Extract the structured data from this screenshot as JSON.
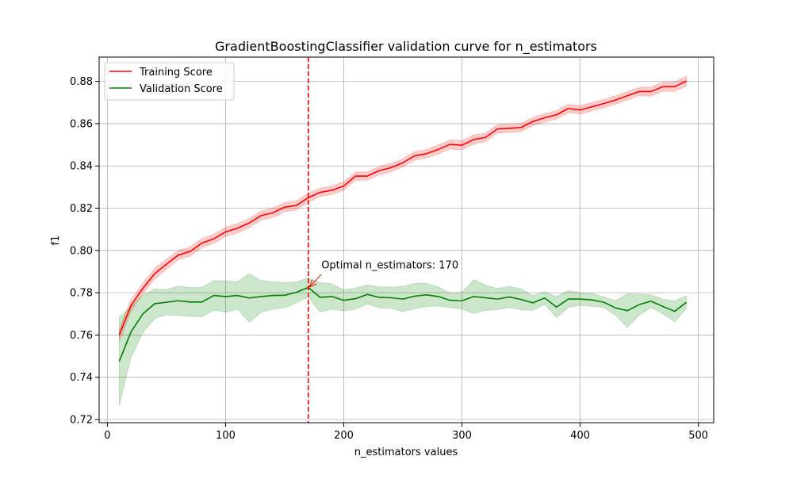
{
  "chart_data": {
    "type": "line",
    "title": "GradientBoostingClassifier validation curve for n_estimators",
    "xlabel": "n_estimators values",
    "ylabel": "f1",
    "xlim": [
      -7,
      513
    ],
    "ylim": [
      0.7185,
      0.8915
    ],
    "xticks": [
      0,
      100,
      200,
      300,
      400,
      500
    ],
    "yticks": [
      0.72,
      0.74,
      0.76,
      0.78,
      0.8,
      0.82,
      0.84,
      0.86,
      0.88
    ],
    "xtick_labels": [
      "0",
      "100",
      "200",
      "300",
      "400",
      "500"
    ],
    "ytick_labels": [
      "0.72",
      "0.74",
      "0.76",
      "0.78",
      "0.80",
      "0.82",
      "0.84",
      "0.86",
      "0.88"
    ],
    "grid": true,
    "legend_position": "top-left",
    "x": [
      10,
      20,
      30,
      40,
      50,
      60,
      70,
      80,
      90,
      100,
      110,
      120,
      130,
      140,
      150,
      160,
      170,
      180,
      190,
      200,
      210,
      220,
      230,
      240,
      250,
      260,
      270,
      280,
      290,
      300,
      310,
      320,
      330,
      340,
      350,
      360,
      370,
      380,
      390,
      400,
      410,
      420,
      430,
      440,
      450,
      460,
      470,
      480,
      490
    ],
    "series": [
      {
        "name": "Training Score",
        "color": "#ff0000",
        "band_color": "#ff0000",
        "band_opacity": 0.2,
        "values": [
          0.76,
          0.774,
          0.782,
          0.789,
          0.7935,
          0.7978,
          0.7995,
          0.8035,
          0.8055,
          0.8088,
          0.8105,
          0.813,
          0.8165,
          0.8178,
          0.8205,
          0.8213,
          0.825,
          0.8275,
          0.8285,
          0.8305,
          0.8352,
          0.8352,
          0.8378,
          0.8392,
          0.8415,
          0.8448,
          0.8458,
          0.8478,
          0.8502,
          0.8498,
          0.8525,
          0.8535,
          0.8575,
          0.8578,
          0.8582,
          0.861,
          0.8628,
          0.8642,
          0.8672,
          0.8665,
          0.868,
          0.8695,
          0.8712,
          0.8732,
          0.8752,
          0.8752,
          0.8775,
          0.8775,
          0.8802
        ],
        "band_half_width": [
          0.003,
          0.0028,
          0.0026,
          0.0025,
          0.0024,
          0.0022,
          0.0022,
          0.0022,
          0.0022,
          0.0022,
          0.0022,
          0.0022,
          0.0022,
          0.0022,
          0.0022,
          0.0022,
          0.0022,
          0.002,
          0.002,
          0.002,
          0.002,
          0.002,
          0.002,
          0.002,
          0.002,
          0.002,
          0.002,
          0.0022,
          0.0022,
          0.0022,
          0.0022,
          0.002,
          0.002,
          0.002,
          0.002,
          0.002,
          0.002,
          0.002,
          0.002,
          0.002,
          0.002,
          0.002,
          0.002,
          0.002,
          0.002,
          0.0022,
          0.0022,
          0.0022,
          0.0024
        ]
      },
      {
        "name": "Validation Score",
        "color": "#008000",
        "band_color": "#008000",
        "band_opacity": 0.2,
        "values": [
          0.7475,
          0.7615,
          0.77,
          0.7748,
          0.7755,
          0.7762,
          0.7756,
          0.7756,
          0.7787,
          0.7782,
          0.7787,
          0.7775,
          0.7782,
          0.7787,
          0.7788,
          0.7802,
          0.7825,
          0.7778,
          0.7782,
          0.7764,
          0.7772,
          0.7792,
          0.7778,
          0.7776,
          0.777,
          0.7784,
          0.779,
          0.7782,
          0.7764,
          0.7762,
          0.7782,
          0.7776,
          0.777,
          0.778,
          0.7768,
          0.7752,
          0.7775,
          0.7732,
          0.777,
          0.777,
          0.7766,
          0.7755,
          0.7728,
          0.7715,
          0.7744,
          0.776,
          0.7735,
          0.7712,
          0.7755
        ],
        "band_half_width": [
          0.021,
          0.012,
          0.009,
          0.007,
          0.006,
          0.007,
          0.0068,
          0.007,
          0.007,
          0.0075,
          0.0065,
          0.0115,
          0.0075,
          0.0065,
          0.006,
          0.005,
          0.0045,
          0.007,
          0.006,
          0.005,
          0.005,
          0.0045,
          0.005,
          0.005,
          0.006,
          0.006,
          0.0055,
          0.0045,
          0.0035,
          0.004,
          0.008,
          0.006,
          0.005,
          0.005,
          0.005,
          0.0035,
          0.003,
          0.005,
          0.004,
          0.003,
          0.003,
          0.0025,
          0.0035,
          0.008,
          0.005,
          0.003,
          0.0035,
          0.005,
          0.003
        ]
      }
    ],
    "vline": {
      "x": 170,
      "color": "#ff0000",
      "style": "dashed"
    },
    "annotation": {
      "text": "Optimal n_estimators: 170",
      "point": [
        170,
        0.7825
      ],
      "text_at": [
        181,
        0.7932
      ],
      "color": "#ff0000"
    },
    "grid_color": "#b0b0b0"
  }
}
